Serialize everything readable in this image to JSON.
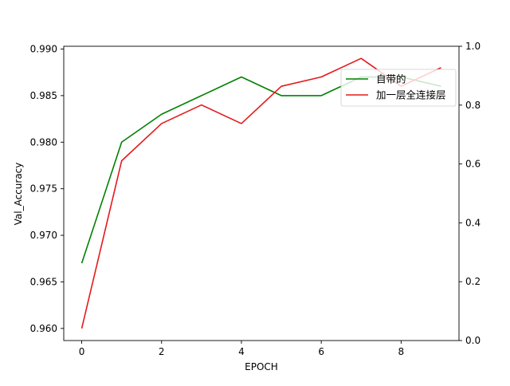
{
  "chart_data": {
    "type": "line",
    "title": "",
    "xlabel": "EPOCH",
    "ylabel": "Val_Accuracy",
    "y2label": "",
    "xlim": [
      -0.45,
      9.45
    ],
    "ylim": [
      0.9587,
      0.9903
    ],
    "y2lim": [
      0.0,
      1.0
    ],
    "x": [
      0,
      1,
      2,
      3,
      4,
      5,
      6,
      7,
      8,
      9
    ],
    "x_ticks": [
      "0",
      "2",
      "4",
      "6",
      "8"
    ],
    "x_tick_values": [
      0,
      2,
      4,
      6,
      8
    ],
    "y_ticks": [
      "0.960",
      "0.965",
      "0.970",
      "0.975",
      "0.980",
      "0.985",
      "0.990"
    ],
    "y_tick_values": [
      0.96,
      0.965,
      0.97,
      0.975,
      0.98,
      0.985,
      0.99
    ],
    "y2_ticks": [
      "0.0",
      "0.2",
      "0.4",
      "0.6",
      "0.8",
      "1.0"
    ],
    "y2_tick_values": [
      0.0,
      0.2,
      0.4,
      0.6,
      0.8,
      1.0
    ],
    "grid": false,
    "legend_position": "upper right",
    "series": [
      {
        "name": "自带的",
        "color": "#008000",
        "values": [
          0.967,
          0.98,
          0.983,
          0.985,
          0.987,
          0.985,
          0.985,
          0.987,
          0.987,
          0.986
        ]
      },
      {
        "name": "加一层全连接层",
        "color": "#e31a1c",
        "values": [
          0.96,
          0.978,
          0.982,
          0.984,
          0.982,
          0.986,
          0.987,
          0.989,
          0.986,
          0.988
        ]
      }
    ]
  }
}
